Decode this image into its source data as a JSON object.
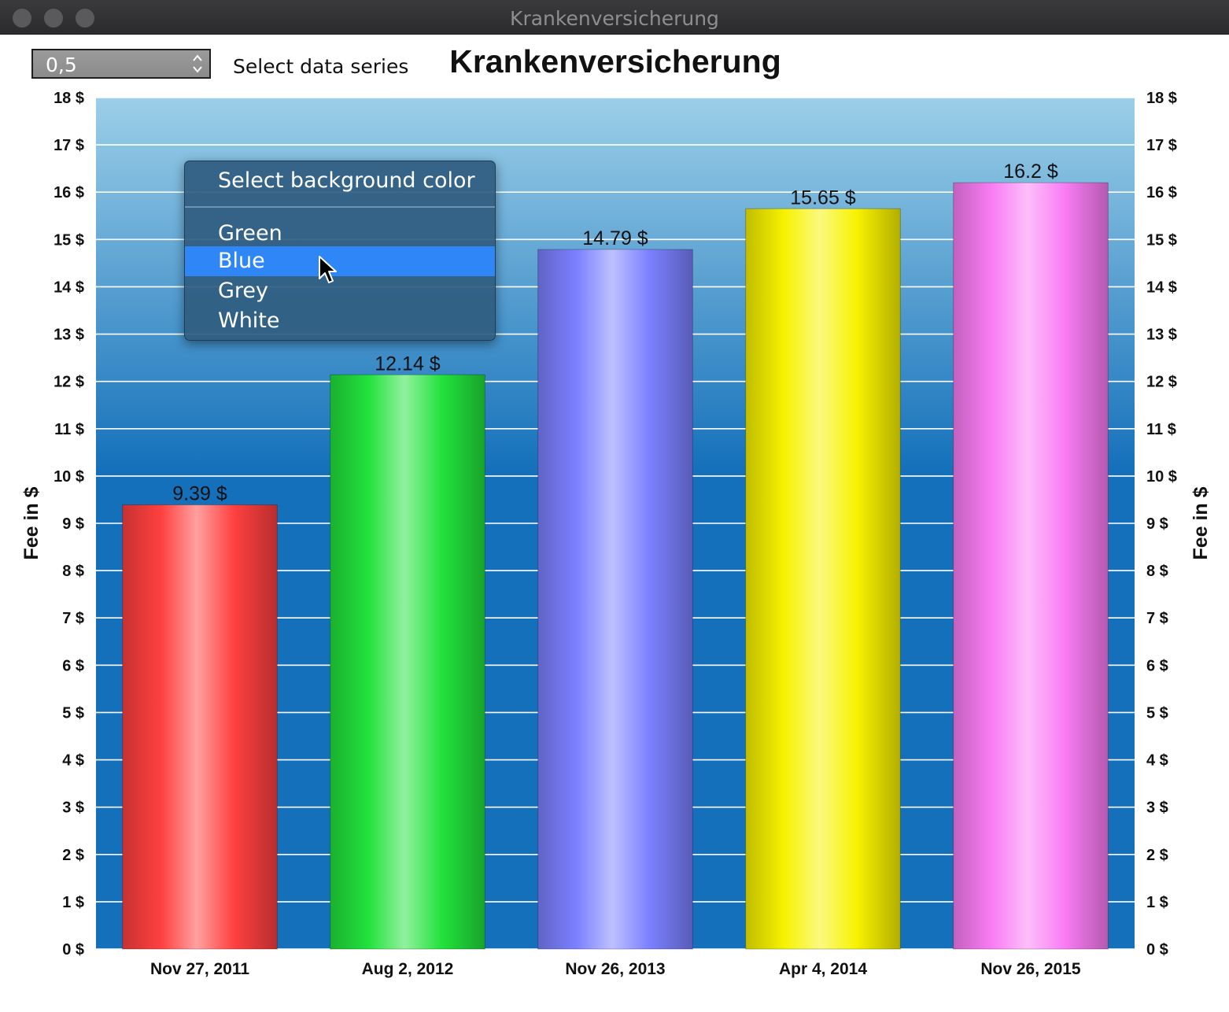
{
  "window": {
    "title": "Krankenversicherung"
  },
  "toolbar": {
    "spinner_value": "0,5",
    "series_label": "Select data series"
  },
  "context_menu": {
    "header": "Select background color",
    "items": [
      {
        "label": "Green",
        "active": false
      },
      {
        "label": "Blue",
        "active": true
      },
      {
        "label": "Grey",
        "active": false
      },
      {
        "label": "White",
        "active": false
      }
    ]
  },
  "colors": {
    "plot_bg_top": "#9ccfe8",
    "plot_bg_bottom": "#1470ba",
    "gridline": "#ffffff",
    "bar_red": "#ff4040",
    "bar_green": "#22e23c",
    "bar_blue": "#7b80ff",
    "bar_yellow": "#f7f200",
    "bar_magenta": "#fa7cf4"
  },
  "chart_data": {
    "type": "bar",
    "title": "Krankenversicherung",
    "ylabel": "Fee in $",
    "ylabel_right": "Fee in $",
    "xlabel": "",
    "ylim": [
      0,
      18
    ],
    "y_ticks": [
      "0 $",
      "1 $",
      "2 $",
      "3 $",
      "4 $",
      "5 $",
      "6 $",
      "7 $",
      "8 $",
      "9 $",
      "10 $",
      "11 $",
      "12 $",
      "13 $",
      "14 $",
      "15 $",
      "16 $",
      "17 $",
      "18 $"
    ],
    "categories": [
      "Nov 27, 2011",
      "Aug 2, 2012",
      "Nov 26, 2013",
      "Apr 4, 2014",
      "Nov 26, 2015"
    ],
    "values": [
      9.39,
      12.14,
      14.79,
      15.65,
      16.2
    ],
    "value_labels": [
      "9.39 $",
      "12.14 $",
      "14.79 $",
      "15.65 $",
      "16.2 $"
    ],
    "bar_colors": [
      "#ff4040",
      "#22e23c",
      "#7b80ff",
      "#f7f200",
      "#fa7cf4"
    ],
    "grid": true,
    "legend": "none"
  }
}
